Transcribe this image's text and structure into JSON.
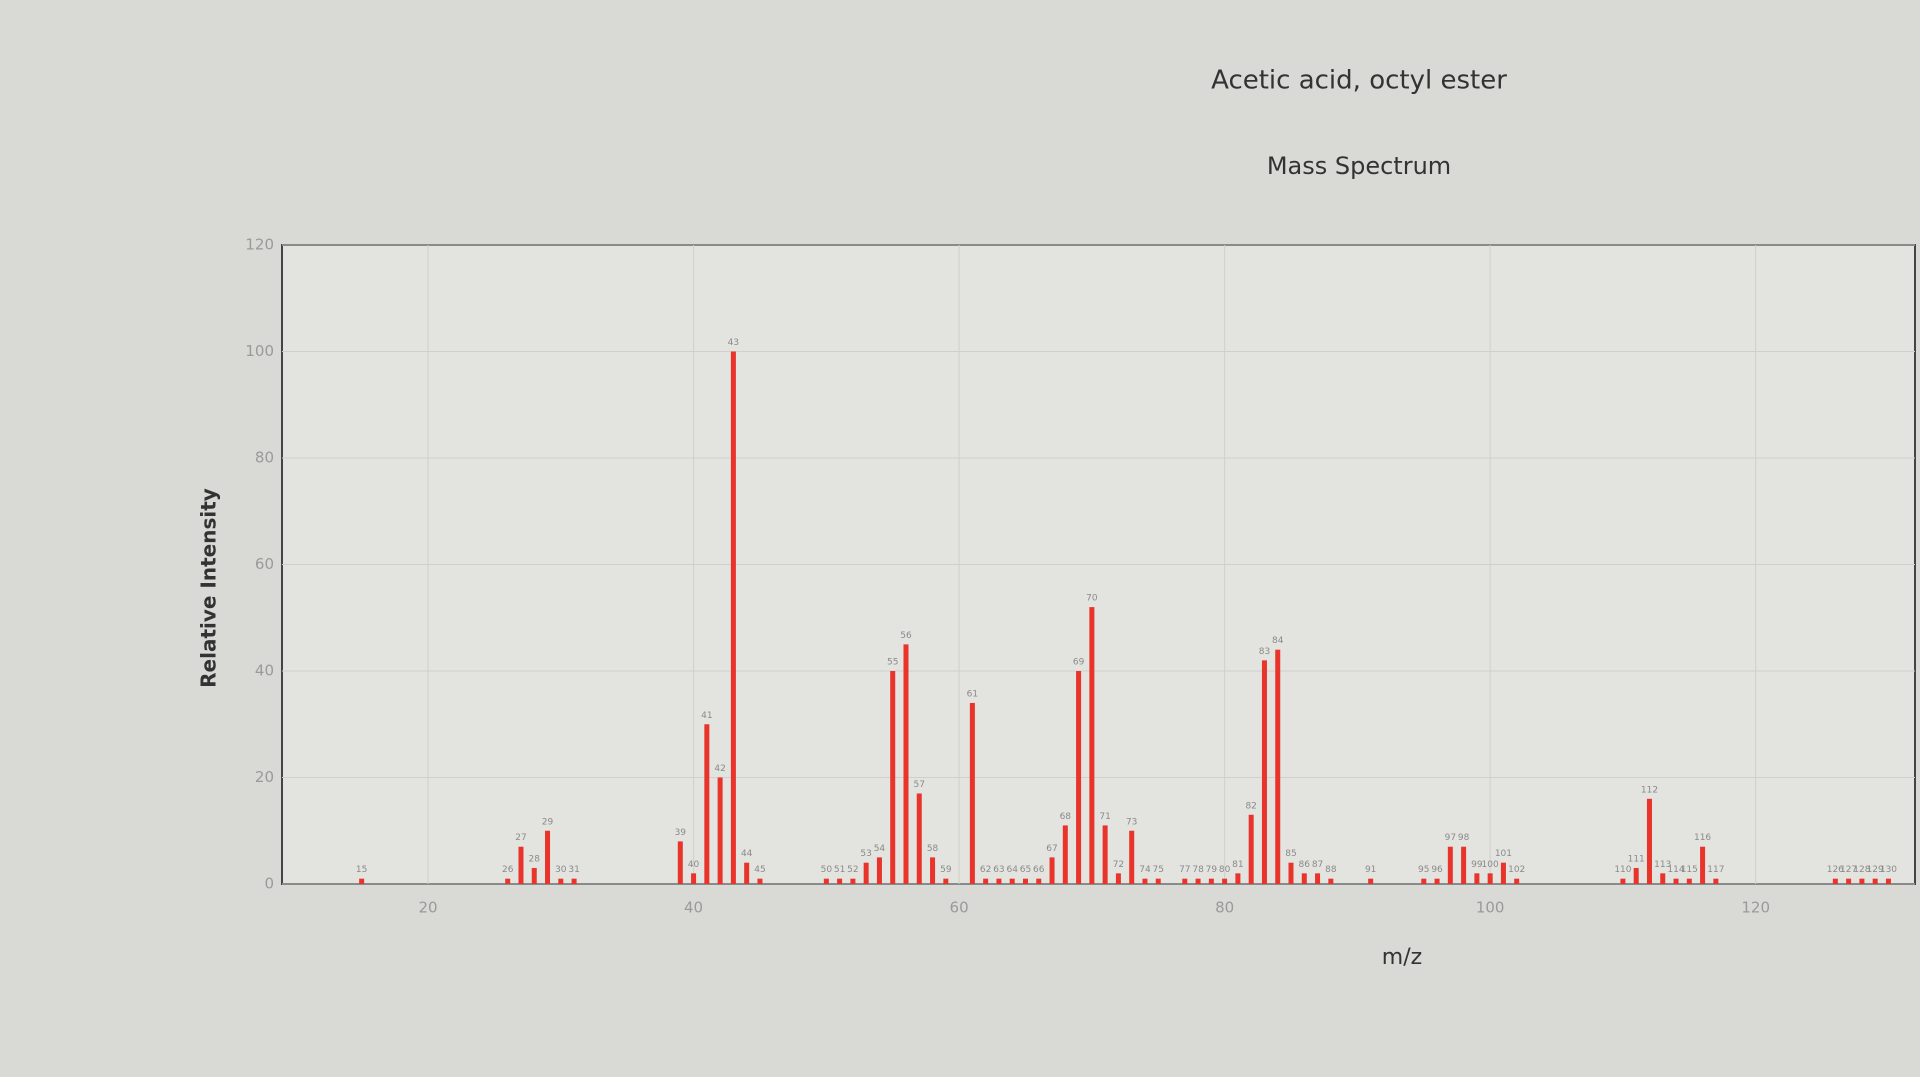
{
  "chart_data": {
    "type": "bar",
    "title": "Acetic acid, octyl ester",
    "subtitle": "Mass Spectrum",
    "x_label": "m/z",
    "y_label": "Relative Intensity",
    "x": [
      15,
      26,
      27,
      28,
      29,
      30,
      31,
      39,
      40,
      41,
      42,
      43,
      44,
      45,
      50,
      51,
      52,
      53,
      54,
      55,
      56,
      57,
      58,
      59,
      61,
      62,
      63,
      64,
      65,
      66,
      67,
      68,
      69,
      70,
      71,
      72,
      73,
      74,
      75,
      77,
      78,
      79,
      80,
      81,
      82,
      83,
      84,
      85,
      86,
      87,
      88,
      91,
      95,
      96,
      97,
      98,
      99,
      100,
      101,
      102,
      110,
      111,
      112,
      113,
      114,
      115,
      116,
      117,
      126,
      127,
      128,
      129,
      130
    ],
    "values": [
      1,
      1,
      7,
      3,
      10,
      1,
      1,
      8,
      2,
      30,
      20,
      100,
      4,
      1,
      1,
      1,
      1,
      4,
      5,
      40,
      45,
      17,
      5,
      1,
      34,
      1,
      1,
      1,
      1,
      1,
      5,
      11,
      40,
      52,
      11,
      2,
      10,
      1,
      1,
      1,
      1,
      1,
      1,
      2,
      13,
      42,
      44,
      4,
      2,
      2,
      1,
      1,
      1,
      1,
      7,
      7,
      2,
      2,
      4,
      1,
      1,
      3,
      16,
      2,
      1,
      1,
      7,
      1,
      1,
      1,
      1,
      1,
      1
    ],
    "color": "#e8342a",
    "xlim": [
      9,
      132
    ],
    "ylim": [
      0,
      120
    ],
    "xticks": [
      20,
      40,
      60,
      80,
      100,
      120
    ],
    "yticks": [
      0,
      20,
      40,
      60,
      80,
      100,
      120
    ],
    "grid": true
  }
}
